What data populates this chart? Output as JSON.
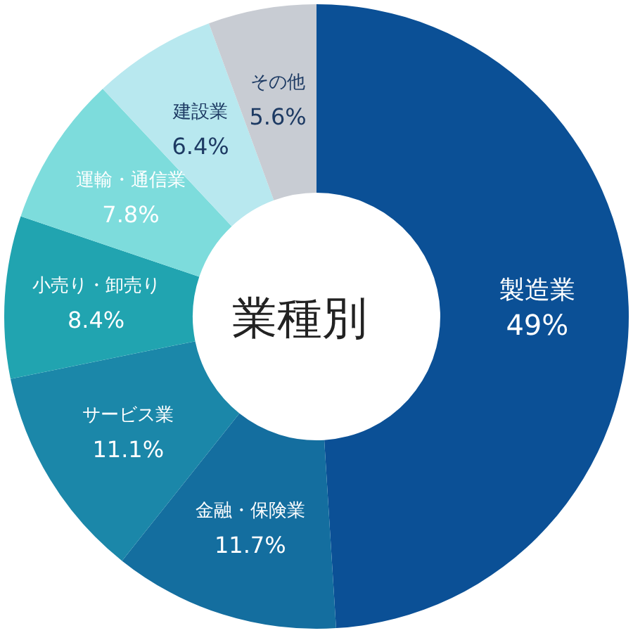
{
  "chart_data": {
    "type": "donut",
    "title": "業種別",
    "categories": [
      "製造業",
      "金融・保険業",
      "サービス業",
      "小売り・卸売り",
      "運輸・通信業",
      "建設業",
      "その他"
    ],
    "values": [
      49,
      11.7,
      11.1,
      8.4,
      7.8,
      6.4,
      5.6
    ],
    "value_labels": [
      "49%",
      "11.7%",
      "11.1%",
      "8.4%",
      "7.8%",
      "6.4%",
      "5.6%"
    ],
    "colors": [
      "#0b5096",
      "#146e9f",
      "#1b87a9",
      "#21a4b0",
      "#7ddcdc",
      "#b8e8ef",
      "#c8ccd3"
    ]
  }
}
